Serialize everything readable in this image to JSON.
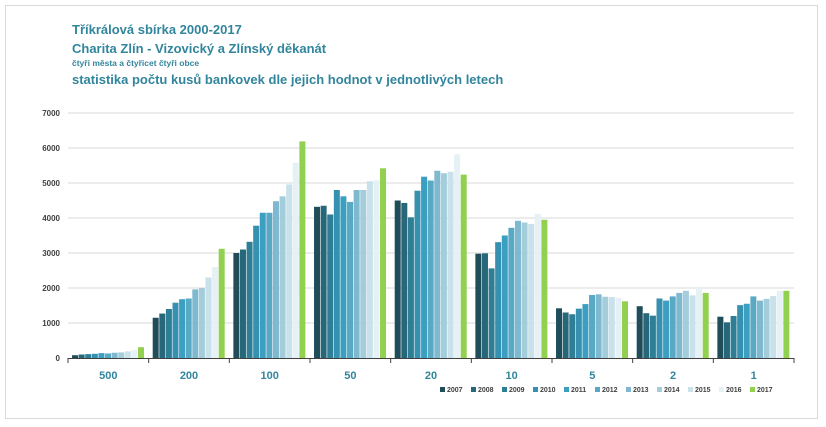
{
  "chart_data": {
    "type": "bar",
    "title_lines": [
      "Tříkrálová sbírka 2000-2017",
      "Charita Zlín - Vizovický a Zlínský děkanát",
      "čtyři města a čtyřicet čtyři obce",
      "statistika  počtu kusů bankovek dle jejich hodnot v jednotlivých letech"
    ],
    "categories": [
      "500",
      "200",
      "100",
      "50",
      "20",
      "10",
      "5",
      "2",
      "1"
    ],
    "ylim": [
      0,
      7000
    ],
    "yticks": [
      "0",
      "1000",
      "2000",
      "3000",
      "4000",
      "5000",
      "6000",
      "7000"
    ],
    "grid": true,
    "legend_position": "bottom-right",
    "colors": [
      "#1f4e5a",
      "#26687a",
      "#2e7e96",
      "#3690b0",
      "#3a9fc1",
      "#5aa9c4",
      "#7fb9cf",
      "#a3cddb",
      "#c9e1ea",
      "#e6f1f5",
      "#92d050"
    ],
    "series": [
      {
        "name": "2007",
        "values": [
          80,
          1150,
          3000,
          4320,
          4500,
          2980,
          1420,
          1480,
          1180
        ]
      },
      {
        "name": "2008",
        "values": [
          100,
          1270,
          3100,
          4350,
          4430,
          2990,
          1300,
          1280,
          1020
        ]
      },
      {
        "name": "2009",
        "values": [
          110,
          1400,
          3320,
          4100,
          4020,
          2560,
          1250,
          1210,
          1200
        ]
      },
      {
        "name": "2010",
        "values": [
          120,
          1580,
          3780,
          4800,
          4780,
          3310,
          1410,
          1700,
          1510
        ]
      },
      {
        "name": "2011",
        "values": [
          140,
          1680,
          4150,
          4620,
          5180,
          3500,
          1540,
          1640,
          1550
        ]
      },
      {
        "name": "2012",
        "values": [
          130,
          1700,
          4150,
          4460,
          5070,
          3720,
          1800,
          1760,
          1760
        ]
      },
      {
        "name": "2013",
        "values": [
          150,
          1960,
          4480,
          4800,
          5350,
          3920,
          1820,
          1860,
          1640
        ]
      },
      {
        "name": "2014",
        "values": [
          160,
          2000,
          4620,
          4800,
          5280,
          3870,
          1750,
          1920,
          1690
        ]
      },
      {
        "name": "2015",
        "values": [
          190,
          2300,
          4960,
          5050,
          5320,
          3830,
          1740,
          1790,
          1770
        ]
      },
      {
        "name": "2016",
        "values": [
          220,
          2600,
          5580,
          5080,
          5820,
          4120,
          1720,
          2040,
          1920
        ]
      },
      {
        "name": "2017",
        "values": [
          310,
          3120,
          6190,
          5420,
          5240,
          3950,
          1620,
          1860,
          1920
        ]
      }
    ]
  }
}
